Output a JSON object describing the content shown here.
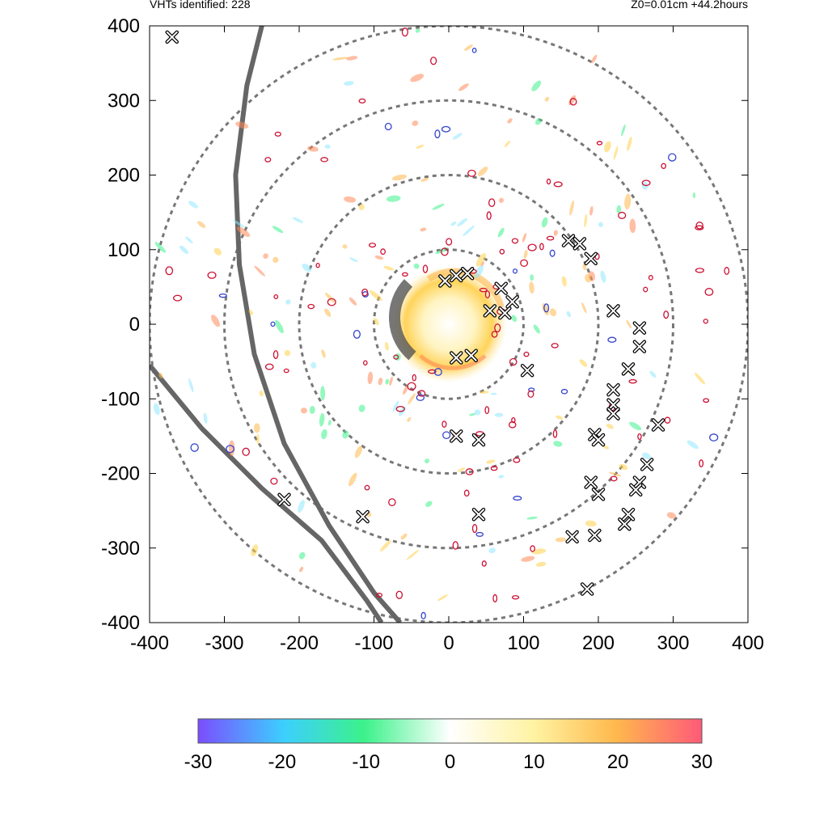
{
  "header": {
    "left_text": "VHTs identified: 228",
    "right_text": "Z0=0.01cm  +44.2hours"
  },
  "chart_data": {
    "type": "scatter",
    "title": "",
    "xlabel": "",
    "ylabel": "",
    "xlim": [
      -400,
      400
    ],
    "ylim": [
      -400,
      400
    ],
    "xticks": [
      -400,
      -300,
      -200,
      -100,
      0,
      100,
      200,
      300,
      400
    ],
    "yticks": [
      -400,
      -300,
      -200,
      -100,
      0,
      100,
      200,
      300,
      400
    ],
    "xtick_labels": [
      "-400",
      "-300",
      "-200",
      "-100",
      "0",
      "100",
      "200",
      "300",
      "400"
    ],
    "ytick_labels": [
      "-400",
      "-300",
      "-200",
      "-100",
      "0",
      "100",
      "200",
      "300",
      "400"
    ],
    "grid": false,
    "range_rings": [
      100,
      200,
      300,
      400
    ],
    "vht_count": 228,
    "vht_markers": [
      {
        "x": -370,
        "y": 385
      },
      {
        "x": 160,
        "y": 112
      },
      {
        "x": 175,
        "y": 108
      },
      {
        "x": 190,
        "y": 88
      },
      {
        "x": -5,
        "y": 58
      },
      {
        "x": 10,
        "y": 65
      },
      {
        "x": 25,
        "y": 68
      },
      {
        "x": 70,
        "y": 48
      },
      {
        "x": 85,
        "y": 30
      },
      {
        "x": 55,
        "y": 18
      },
      {
        "x": 75,
        "y": 15
      },
      {
        "x": 220,
        "y": 18
      },
      {
        "x": 255,
        "y": -5
      },
      {
        "x": 255,
        "y": -30
      },
      {
        "x": 10,
        "y": -45
      },
      {
        "x": 30,
        "y": -42
      },
      {
        "x": 105,
        "y": -62
      },
      {
        "x": 240,
        "y": -60
      },
      {
        "x": 220,
        "y": -88
      },
      {
        "x": 220,
        "y": -108
      },
      {
        "x": 220,
        "y": -120
      },
      {
        "x": 280,
        "y": -135
      },
      {
        "x": 195,
        "y": -148
      },
      {
        "x": 200,
        "y": -155
      },
      {
        "x": 10,
        "y": -150
      },
      {
        "x": 40,
        "y": -155
      },
      {
        "x": 265,
        "y": -188
      },
      {
        "x": 190,
        "y": -212
      },
      {
        "x": 200,
        "y": -228
      },
      {
        "x": 255,
        "y": -212
      },
      {
        "x": 250,
        "y": -222
      },
      {
        "x": -220,
        "y": -235
      },
      {
        "x": -115,
        "y": -258
      },
      {
        "x": 40,
        "y": -255
      },
      {
        "x": 240,
        "y": -255
      },
      {
        "x": 235,
        "y": -268
      },
      {
        "x": 165,
        "y": -285
      },
      {
        "x": 195,
        "y": -283
      },
      {
        "x": 185,
        "y": -355
      }
    ],
    "track_lines": [
      [
        [
          -250,
          400
        ],
        [
          -270,
          320
        ],
        [
          -285,
          200
        ],
        [
          -280,
          80
        ],
        [
          -260,
          -40
        ],
        [
          -220,
          -160
        ],
        [
          -160,
          -270
        ],
        [
          -100,
          -360
        ],
        [
          -65,
          -400
        ]
      ],
      [
        [
          -400,
          -55
        ],
        [
          -330,
          -140
        ],
        [
          -250,
          -220
        ],
        [
          -170,
          -290
        ],
        [
          -110,
          -370
        ],
        [
          -90,
          -400
        ]
      ]
    ],
    "colorbar": {
      "min": -30,
      "max": 30,
      "ticks": [
        -30,
        -20,
        -10,
        0,
        10,
        20,
        30
      ],
      "tick_labels": [
        "-30",
        "-20",
        "-10",
        "0",
        "10",
        "20",
        "30"
      ],
      "colors": [
        "#7b4dff",
        "#3ccfff",
        "#3cf28a",
        "#ffffff",
        "#fff2a0",
        "#ffb84d",
        "#ff5a78"
      ]
    },
    "colors": {
      "ring": "#777777",
      "track": "#666666",
      "eyewall_warm": "#ffd24a",
      "contour_red": "#cc1133",
      "contour_blue": "#3344cc"
    }
  }
}
